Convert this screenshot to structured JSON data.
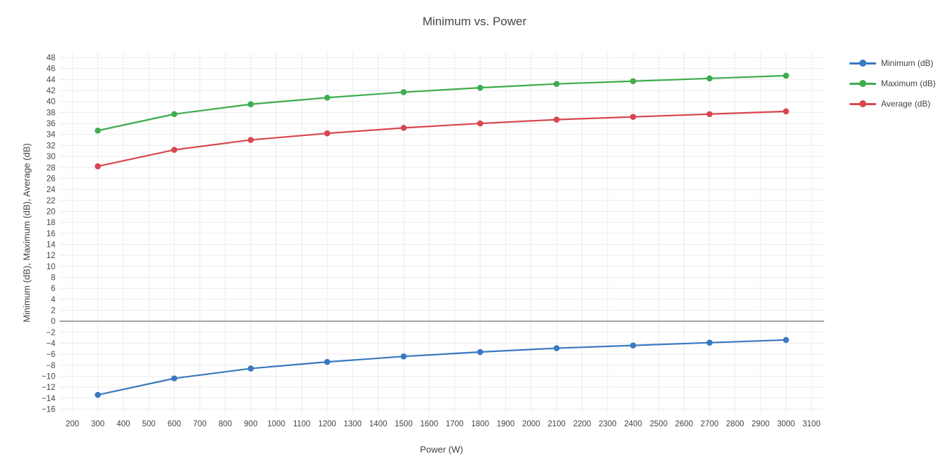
{
  "title": "Minimum vs. Power",
  "x_axis": {
    "title": "Power (W)",
    "ticks": [
      200,
      300,
      400,
      500,
      600,
      700,
      800,
      900,
      1000,
      1100,
      1200,
      1300,
      1400,
      1500,
      1600,
      1700,
      1800,
      1900,
      2000,
      2100,
      2200,
      2300,
      2400,
      2500,
      2600,
      2700,
      2800,
      2900,
      3000,
      3100
    ]
  },
  "y_axis": {
    "title": "Minimum (dB), Maximum (dB), Average (dB)",
    "ticks": [
      -16,
      -14,
      -12,
      -10,
      -8,
      -6,
      -4,
      -2,
      0,
      2,
      4,
      6,
      8,
      10,
      12,
      14,
      16,
      18,
      20,
      22,
      24,
      26,
      28,
      30,
      32,
      34,
      36,
      38,
      40,
      42,
      44,
      46,
      48
    ]
  },
  "colors": {
    "grid": "#ebebeb",
    "zero_line": "#999999",
    "text": "#444444",
    "background": "#ffffff",
    "series_blue": "#3879c0",
    "series_green": "#3cac4d",
    "series_red": "#d9464f"
  },
  "chart_data": {
    "type": "line",
    "title": "Minimum vs. Power",
    "xlabel": "Power (W)",
    "ylabel": "Minimum (dB), Maximum (dB), Average (dB)",
    "x": [
      300,
      600,
      900,
      1200,
      1500,
      1800,
      2100,
      2400,
      2700,
      3000
    ],
    "series": [
      {
        "name": "Minimum (dB)",
        "color": "#3879c0",
        "values": [
          -13.4,
          -10.4,
          -8.6,
          -7.4,
          -6.4,
          -5.6,
          -4.9,
          -4.4,
          -3.9,
          -3.4
        ]
      },
      {
        "name": "Maximum (dB)",
        "color": "#3cac4d",
        "values": [
          34.7,
          37.7,
          39.5,
          40.7,
          41.7,
          42.5,
          43.2,
          43.7,
          44.2,
          44.7
        ]
      },
      {
        "name": "Average (dB)",
        "color": "#d9464f",
        "values": [
          28.2,
          31.2,
          33.0,
          34.2,
          35.2,
          36.0,
          36.7,
          37.2,
          37.7,
          38.2
        ]
      }
    ],
    "xlim": [
      150,
      3150
    ],
    "ylim": [
      -16.7,
      48.9
    ],
    "grid": true,
    "zero_line": true,
    "legend_position": "right",
    "marker": "circle"
  }
}
